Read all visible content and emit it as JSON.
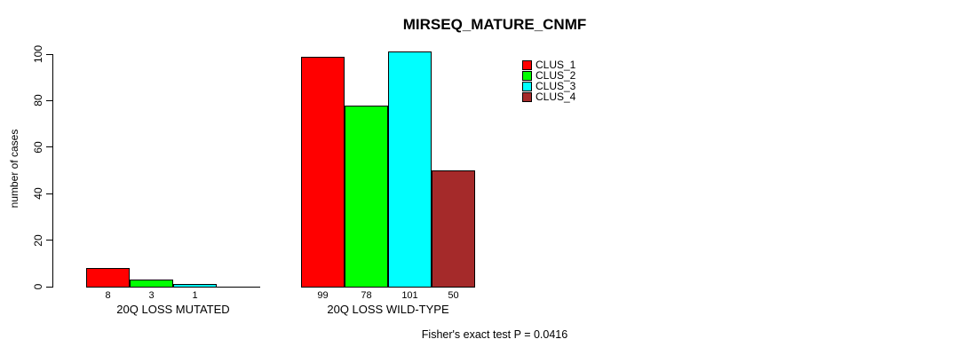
{
  "chart_data": {
    "type": "bar",
    "title": "MIRSEQ_MATURE_CNMF",
    "ylabel": "number of cases",
    "xlabel": "",
    "ylim": [
      0,
      100
    ],
    "yticks": [
      0,
      20,
      40,
      60,
      80,
      100
    ],
    "grid": false,
    "legend_position": "top-right",
    "categories": [
      "20Q LOSS MUTATED",
      "20Q LOSS WILD-TYPE"
    ],
    "series": [
      {
        "name": "CLUS_1",
        "color": "#FF0000",
        "values": [
          8,
          99
        ]
      },
      {
        "name": "CLUS_2",
        "color": "#00FF00",
        "values": [
          3,
          78
        ]
      },
      {
        "name": "CLUS_3",
        "color": "#00FFFF",
        "values": [
          1,
          101
        ]
      },
      {
        "name": "CLUS_4",
        "color": "#A52A2A",
        "values": [
          0,
          50
        ]
      }
    ],
    "bar_labels": [
      [
        "8",
        "3",
        "1",
        ""
      ],
      [
        "99",
        "78",
        "101",
        "50"
      ]
    ],
    "annotation": "Fisher's exact test P = 0.0416"
  }
}
